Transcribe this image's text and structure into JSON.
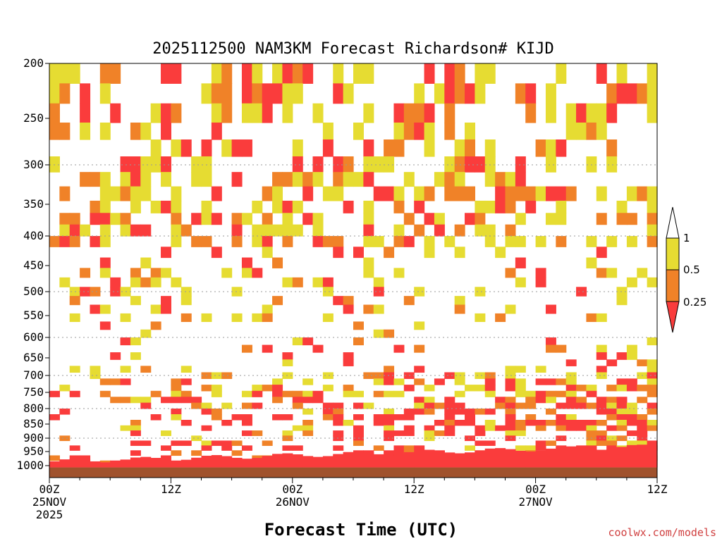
{
  "chart_data": {
    "type": "heatmap",
    "title": "2025112500 NAM3KM Forecast Richardson# KIJD",
    "xlabel": "Forecast Time (UTC)",
    "ylabel": "",
    "credit": "coolwx.com/models",
    "x_ticks": [
      {
        "hour": 0,
        "lines": [
          "00Z",
          "25NOV",
          "2025"
        ]
      },
      {
        "hour": 12,
        "lines": [
          "12Z"
        ]
      },
      {
        "hour": 24,
        "lines": [
          "00Z",
          "26NOV"
        ]
      },
      {
        "hour": 36,
        "lines": [
          "12Z"
        ]
      },
      {
        "hour": 48,
        "lines": [
          "00Z",
          "27NOV"
        ]
      },
      {
        "hour": 60,
        "lines": [
          "12Z"
        ]
      }
    ],
    "x_range": [
      0,
      60
    ],
    "y_range_hpa": [
      200,
      1000
    ],
    "y_ticks": [
      200,
      250,
      300,
      350,
      400,
      450,
      500,
      550,
      600,
      650,
      700,
      750,
      800,
      850,
      900,
      950,
      1000
    ],
    "grid_levels": [
      300,
      400,
      500,
      600,
      700,
      800,
      900
    ],
    "legend": {
      "labels": [
        "1",
        "0.5",
        "0.25"
      ],
      "bins": [
        {
          "range": "0.5–1",
          "color": "#e6dc32"
        },
        {
          "range": "0.25–0.5",
          "color": "#f08228"
        },
        {
          "range": "0–0.25",
          "color": "#fa3c3c"
        }
      ]
    },
    "ground_color": "#a0522d",
    "description": "Gridded field of Richardson number bins over forecast hour (0–60) and pressure level (200–1000 hPa); colored cells mark low Ri bins, white is above 1."
  },
  "colors": {
    "yellow": "#e6dc32",
    "orange": "#f08228",
    "red": "#fa3c3c",
    "ground": "#a0522d"
  }
}
